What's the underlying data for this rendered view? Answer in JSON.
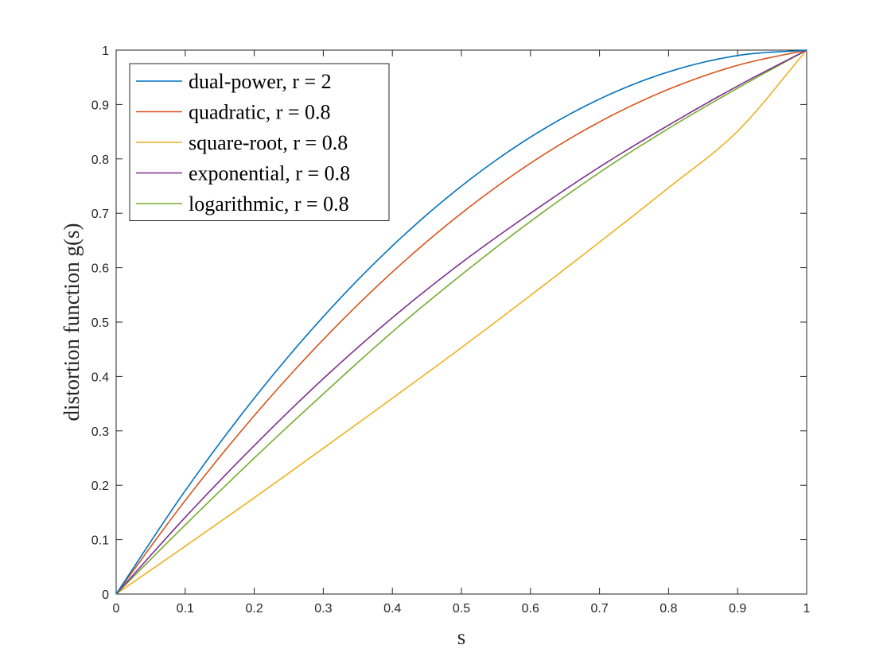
{
  "chart_data": {
    "type": "line",
    "xlabel": "s",
    "ylabel": "distortion function g(s)",
    "xlim": [
      0,
      1
    ],
    "ylim": [
      0,
      1
    ],
    "xticks": [
      "0",
      "0.1",
      "0.2",
      "0.3",
      "0.4",
      "0.5",
      "0.6",
      "0.7",
      "0.8",
      "0.9",
      "1"
    ],
    "yticks": [
      "0",
      "0.1",
      "0.2",
      "0.3",
      "0.4",
      "0.5",
      "0.6",
      "0.7",
      "0.8",
      "0.9",
      "1"
    ],
    "grid": false,
    "legend_position": "top-left",
    "x": [
      0,
      0.1,
      0.2,
      0.3,
      0.4,
      0.5,
      0.6,
      0.7,
      0.8,
      0.9,
      1
    ],
    "series": [
      {
        "name": "dual-power, r = 2",
        "color": "#0072BD",
        "values": [
          0,
          0.19,
          0.36,
          0.51,
          0.64,
          0.75,
          0.84,
          0.91,
          0.96,
          0.99,
          1
        ]
      },
      {
        "name": "quadratic, r = 0.8",
        "color": "#D95319",
        "values": [
          0,
          0.172,
          0.328,
          0.468,
          0.592,
          0.7,
          0.792,
          0.868,
          0.928,
          0.972,
          1
        ]
      },
      {
        "name": "square-root, r = 0.8",
        "color": "#EDB120",
        "values": [
          0,
          0.088,
          0.177,
          0.268,
          0.36,
          0.453,
          0.549,
          0.647,
          0.747,
          0.851,
          1
        ]
      },
      {
        "name": "exponential, r = 0.8",
        "color": "#7E2F8E",
        "values": [
          0,
          0.141,
          0.273,
          0.396,
          0.508,
          0.609,
          0.7,
          0.785,
          0.862,
          0.934,
          1
        ]
      },
      {
        "name": "logarithmic, r = 0.8",
        "color": "#77AC30",
        "values": [
          0,
          0.127,
          0.25,
          0.368,
          0.482,
          0.587,
          0.685,
          0.775,
          0.856,
          0.93,
          1
        ]
      }
    ]
  }
}
